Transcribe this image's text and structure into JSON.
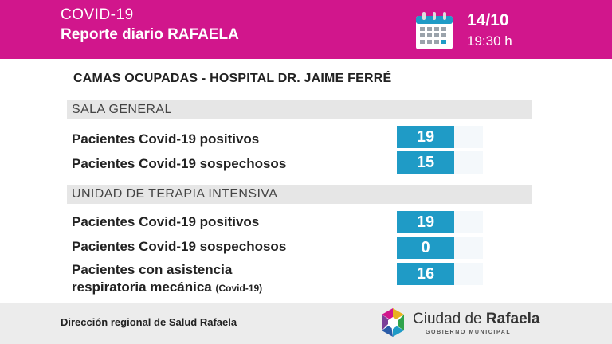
{
  "header": {
    "line1": "COVID-19",
    "line2": "Reporte diario RAFAELA",
    "date": "14/10",
    "time": "19:30 h",
    "calendar_icon": "calendar-icon"
  },
  "title": "CAMAS OCUPADAS - HOSPITAL DR. JAIME FERRÉ",
  "sections": [
    {
      "label": "SALA GENERAL",
      "rows": [
        {
          "label": "Pacientes Covid-19 positivos",
          "value": "19"
        },
        {
          "label": "Pacientes Covid-19 sospechosos",
          "value": "15"
        }
      ]
    },
    {
      "label": "UNIDAD DE TERAPIA INTENSIVA",
      "rows": [
        {
          "label": "Pacientes Covid-19 positivos",
          "value": "19"
        },
        {
          "label": "Pacientes Covid-19 sospechosos",
          "value": "0"
        },
        {
          "label_line1": "Pacientes con asistencia",
          "label_line2": "respiratoria mecánica",
          "label_note": "(Covid-19)",
          "value": "16"
        }
      ]
    }
  ],
  "footer": {
    "text": "Dirección regional de Salud Rafaela",
    "logo_name_regular": "Ciudad de",
    "logo_name_bold": "Rafaela",
    "logo_sub": "GOBIERNO MUNICIPAL",
    "logo_icon": "city-logo-icon"
  },
  "colors": {
    "header_bg": "#d1168c",
    "value_box": "#1f9bc6",
    "section_bar": "#e6e6e6",
    "footer_bg": "#ececec"
  }
}
